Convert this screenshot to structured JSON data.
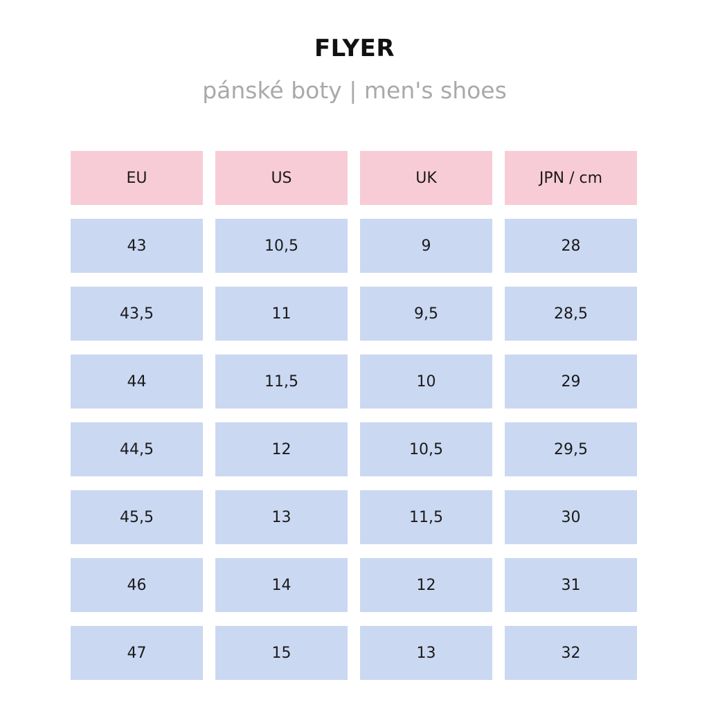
{
  "title": "FLYER",
  "subtitle": "pánské boty | men's shoes",
  "table": {
    "headers": [
      "EU",
      "US",
      "UK",
      "JPN / cm"
    ],
    "rows": [
      [
        "43",
        "10,5",
        "9",
        "28"
      ],
      [
        "43,5",
        "11",
        "9,5",
        "28,5"
      ],
      [
        "44",
        "11,5",
        "10",
        "29"
      ],
      [
        "44,5",
        "12",
        "10,5",
        "29,5"
      ],
      [
        "45,5",
        "13",
        "11,5",
        "30"
      ],
      [
        "46",
        "14",
        "12",
        "31"
      ],
      [
        "47",
        "15",
        "13",
        "32"
      ]
    ]
  },
  "colors": {
    "header_bg": "#f8ccd6",
    "cell_bg": "#cbd8f2",
    "subtitle": "#a9a9a9"
  }
}
